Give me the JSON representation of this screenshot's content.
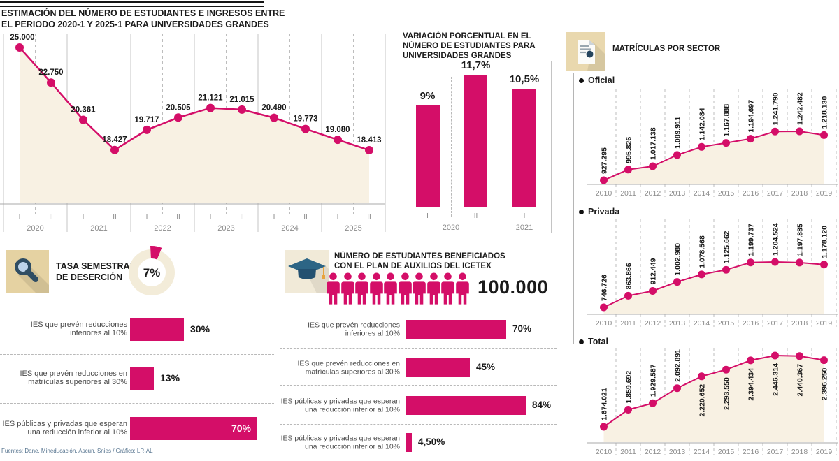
{
  "colors": {
    "accent": "#d40e68",
    "area_fill": "#f8f1e3",
    "grid_solid": "#c4c4c4",
    "grid_dashed": "#bdbdbd",
    "axis_text": "#8c8c8c",
    "icon_bg_tan": "#e5d2a2",
    "icon_bg_cream": "#f1ead8",
    "icon_bg_doc": "#e9d8ae",
    "donut_ring": "#f3ecd9",
    "footer_text": "#55738e"
  },
  "sections": {
    "matriculas": {
      "title": "MATRÍCULAS POR SECTOR"
    },
    "icetex": {
      "title_lines": [
        "NÚMERO DE ESTUDIANTES BENEFICIADOS",
        "CON EL PLAN DE AUXILIOS DEL ICETEX"
      ],
      "total_label": "100.000",
      "persons_count": 10
    }
  },
  "footer": {
    "text": "Fuentes: Dane, Mineducación, Ascun, Snies / Gráfico: LR-AL"
  },
  "chart_data": [
    {
      "id": "estimacion-estudiantes",
      "type": "line",
      "title": "ESTIMACIÓN DEL NÚMERO DE ESTUDIANTES E INGRESOS ENTRE EL PERIODO 2020-1 Y 2025-1 PARA UNIVERSIDADES GRANDES",
      "title_lines": [
        "ESTIMACIÓN DEL NÚMERO DE ESTUDIANTES E INGRESOS ENTRE",
        "EL PERIODO 2020-1 Y 2025-1 PARA UNIVERSIDADES GRANDES"
      ],
      "x": [
        "2020-I",
        "2020-II",
        "2021-I",
        "2021-II",
        "2022-I",
        "2022-II",
        "2023-I",
        "2023-II",
        "2024-I",
        "2024-II",
        "2025-I",
        "2025-II"
      ],
      "values": [
        25000,
        22750,
        20361,
        18427,
        19717,
        20505,
        21121,
        21015,
        20490,
        19773,
        19080,
        18413
      ],
      "point_labels": [
        "25.000",
        "22.750",
        "20.361",
        "18.427",
        "19.717",
        "20.505",
        "21.121",
        "21.015",
        "20.490",
        "19.773",
        "19.080",
        "18.413"
      ],
      "semesters": [
        "I",
        "II"
      ],
      "years": [
        "2020",
        "2021",
        "2022",
        "2023",
        "2024",
        "2025"
      ],
      "ylim": [
        18000,
        25500
      ],
      "area": true,
      "grid": true,
      "legend": "none"
    },
    {
      "id": "variacion-porcentual",
      "type": "bar",
      "title": "VARIACIÓN PORCENTUAL EN EL NÚMERO DE ESTUDIANTES PARA UNIVERSIDADES GRANDES",
      "title_lines": [
        "VARIACIÓN PORCENTUAL EN EL",
        "NÚMERO DE ESTUDIANTES PARA",
        "UNIVERSIDADES GRANDES"
      ],
      "categories": [
        "2020-I",
        "2020-II",
        "2021-I"
      ],
      "values": [
        9,
        11.7,
        10.5
      ],
      "value_labels": [
        "9%",
        "11,7%",
        "10,5%"
      ],
      "tick_labels": [
        "I",
        "II",
        "I"
      ],
      "year_labels": [
        "2020",
        "2021"
      ],
      "ylim": [
        0,
        12
      ]
    },
    {
      "id": "matriculas-oficial",
      "type": "line",
      "series_name": "Oficial",
      "x": [
        "2010",
        "2011",
        "2012",
        "2013",
        "2014",
        "2015",
        "2016",
        "2017",
        "2018",
        "2019"
      ],
      "values": [
        927295,
        995826,
        1017138,
        1089911,
        1142084,
        1167888,
        1194697,
        1241790,
        1242482,
        1218130
      ],
      "point_labels": [
        "927.295",
        "995.826",
        "1.017.138",
        "1.089.911",
        "1.142.084",
        "1.167.888",
        "1.194.697",
        "1.241.790",
        "1.242.482",
        "1.218.130"
      ],
      "area": true
    },
    {
      "id": "matriculas-privada",
      "type": "line",
      "series_name": "Privada",
      "x": [
        "2010",
        "2011",
        "2012",
        "2013",
        "2014",
        "2015",
        "2016",
        "2017",
        "2018",
        "2019"
      ],
      "values": [
        746726,
        863866,
        912449,
        1002980,
        1078568,
        1125662,
        1199737,
        1204524,
        1197885,
        1178120
      ],
      "point_labels": [
        "746.726",
        "863.866",
        "912.449",
        "1.002.980",
        "1.078.568",
        "1.125.662",
        "1.199.737",
        "1.204.524",
        "1.197.885",
        "1.178.120"
      ],
      "area": true
    },
    {
      "id": "matriculas-total",
      "type": "line",
      "series_name": "Total",
      "x": [
        "2010",
        "2011",
        "2012",
        "2013",
        "2014",
        "2015",
        "2016",
        "2017",
        "2018",
        "2019"
      ],
      "values": [
        1674021,
        1859692,
        1929587,
        2092891,
        2220652,
        2293550,
        2394434,
        2446314,
        2440367,
        2396250
      ],
      "point_labels": [
        "1.674.021",
        "1.859.692",
        "1.929.587",
        "2.092.891",
        "2.220.652",
        "2.293.550",
        "2.394.434",
        "2.446.314",
        "2.440.367",
        "2.396.250"
      ],
      "area": true
    },
    {
      "id": "tasa-desercion",
      "type": "pie",
      "title": "TASA SEMESTRAL DE DESERCIÓN",
      "title_lines": [
        "TASA SEMESTRAL",
        "DE DESERCIÓN"
      ],
      "slices": [
        {
          "label": "Tasa semestral de deserción",
          "value": 7
        },
        {
          "label": "Resto",
          "value": 93
        }
      ],
      "center_label": "7%"
    },
    {
      "id": "desercion-bars",
      "type": "bar",
      "orientation": "horizontal",
      "categories": [
        "IES  que prevén reducciones inferiores al 10%",
        "IES  que prevén reducciones en matrículas superiores al 30%",
        "IES públicas y privadas que esperan una reducción inferior al 10%"
      ],
      "values": [
        30,
        13,
        70
      ],
      "value_labels": [
        "30%",
        "13%",
        "70%"
      ]
    },
    {
      "id": "icetex-bars",
      "type": "bar",
      "orientation": "horizontal",
      "categories": [
        "IES  que prevén reducciones inferiores al 10%",
        "IES  que prevén reducciones en matrículas superiores al 30%",
        "IES públicas y privadas que esperan una reducción inferior al 10%",
        "IES públicas y privadas que esperan una reducción inferior al 10%"
      ],
      "values": [
        70,
        45,
        84,
        4.5
      ],
      "value_labels": [
        "70%",
        "45%",
        "84%",
        "4,50%"
      ]
    }
  ]
}
